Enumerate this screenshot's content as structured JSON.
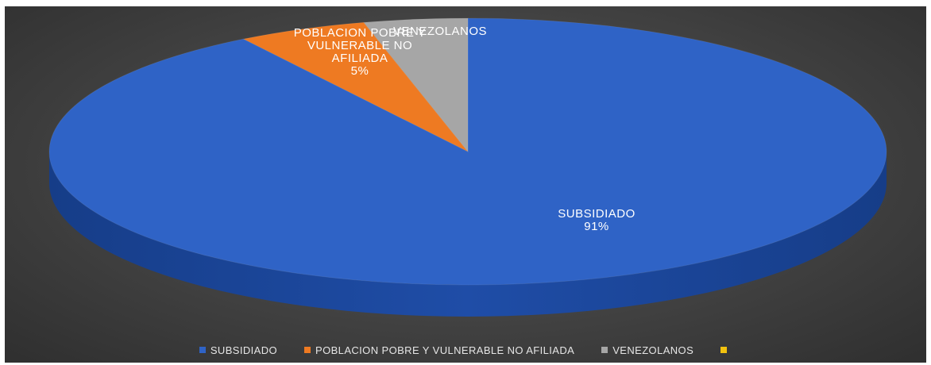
{
  "chart_data": {
    "type": "pie",
    "title": "",
    "three_d": true,
    "legend_position": "bottom",
    "categories": [
      "SUBSIDIADO",
      "POBLACION POBRE Y VULNERABLE  NO AFILIADA",
      "VENEZOLANOS",
      ""
    ],
    "values": [
      91,
      5,
      4,
      0
    ],
    "data_labels": [
      [
        "SUBSIDIADO",
        "91%"
      ],
      [
        "POBLACION POBRE Y",
        "VULNERABLE  NO",
        "AFILIADA",
        "5%"
      ],
      [
        "VENEZOLANOS"
      ],
      []
    ],
    "colors": [
      "#2f63c6",
      "#ee7a22",
      "#a6a6a6",
      "#f2c20f"
    ]
  }
}
